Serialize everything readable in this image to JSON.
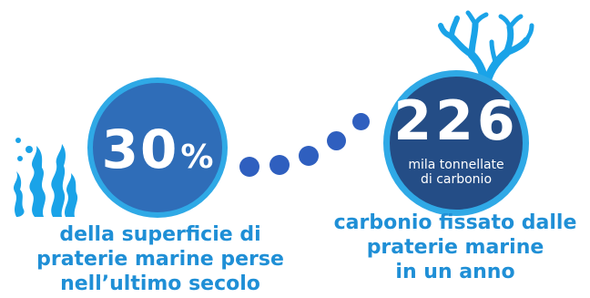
{
  "stat_left": {
    "value": "30",
    "unit": "%",
    "caption_lines": [
      "della superficie di",
      "praterie marine perse",
      "nell’ultimo secolo"
    ]
  },
  "stat_right": {
    "value": "226",
    "sub_lines": [
      "mila tonnellate",
      "di carbonio"
    ],
    "caption_lines": [
      "carbonio fissato dalle",
      "praterie marine",
      "in un anno"
    ]
  },
  "icons": {
    "left": "seagrass-icon",
    "right": "coral-icon"
  },
  "colors": {
    "caption": "#1f8fd6",
    "circle_left_fill": "#2f6db8",
    "circle_right_fill": "#244d86",
    "circle_ring": "#2fa9e6",
    "dots": "#2f5fbf",
    "seagrass": "#1aa3e8",
    "coral": "#1aa3e8"
  }
}
